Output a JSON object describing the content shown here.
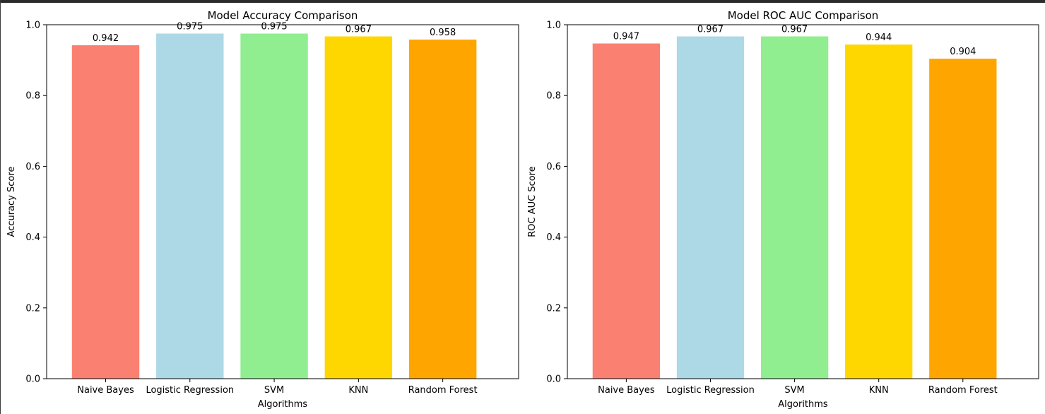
{
  "chart_data": [
    {
      "type": "bar",
      "title": "Model Accuracy Comparison",
      "xlabel": "Algorithms",
      "ylabel": "Accuracy Score",
      "ylim": [
        0,
        1.0
      ],
      "yticks": [
        "0.0",
        "0.2",
        "0.4",
        "0.6",
        "0.8",
        "1.0"
      ],
      "grid": false,
      "categories": [
        "Naive Bayes",
        "Logistic Regression",
        "SVM",
        "KNN",
        "Random Forest"
      ],
      "values": [
        0.942,
        0.975,
        0.975,
        0.967,
        0.958
      ],
      "value_labels": [
        "0.942",
        "0.975",
        "0.975",
        "0.967",
        "0.958"
      ],
      "colors": [
        "#FA8072",
        "#ADD8E6",
        "#90EE90",
        "#FFD700",
        "#FFA500"
      ]
    },
    {
      "type": "bar",
      "title": "Model ROC AUC Comparison",
      "xlabel": "Algorithms",
      "ylabel": "ROC AUC Score",
      "ylim": [
        0,
        1.0
      ],
      "yticks": [
        "0.0",
        "0.2",
        "0.4",
        "0.6",
        "0.8",
        "1.0"
      ],
      "grid": false,
      "categories": [
        "Naive Bayes",
        "Logistic Regression",
        "SVM",
        "KNN",
        "Random Forest"
      ],
      "values": [
        0.947,
        0.967,
        0.967,
        0.944,
        0.904
      ],
      "value_labels": [
        "0.947",
        "0.967",
        "0.967",
        "0.944",
        "0.904"
      ],
      "colors": [
        "#FA8072",
        "#ADD8E6",
        "#90EE90",
        "#FFD700",
        "#FFA500"
      ]
    }
  ]
}
